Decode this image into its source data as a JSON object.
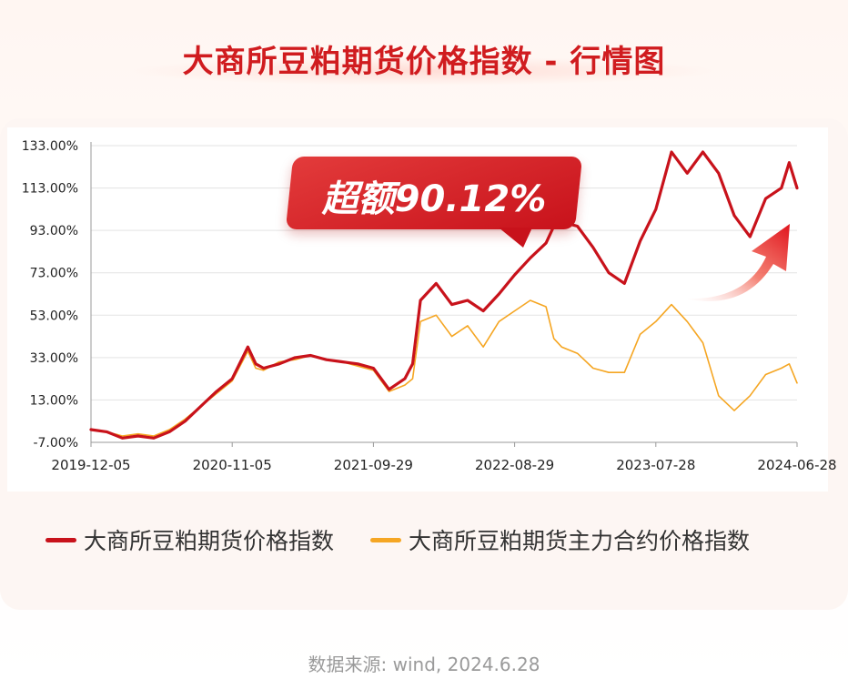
{
  "title": "大商所豆粕期货价格指数 - 行情图",
  "callout": "超额90.12%",
  "source": "数据来源: wind, 2024.6.28",
  "colors": {
    "series1": "#c8121b",
    "series2": "#f5a623",
    "accent": "#d01c1f"
  },
  "chart_data": {
    "type": "line",
    "ylim": [
      -7,
      133
    ],
    "yticks": [
      "133.00%",
      "113.00%",
      "93.00%",
      "73.00%",
      "53.00%",
      "33.00%",
      "13.00%",
      "-7.00%"
    ],
    "ytick_values": [
      133,
      113,
      93,
      73,
      53,
      33,
      13,
      -7
    ],
    "xticks": [
      "2019-12-05",
      "2020-11-05",
      "2021-09-29",
      "2022-08-29",
      "2023-07-28",
      "2024-06-28"
    ],
    "grid": true,
    "legend": "bottom",
    "x_end": 4.5,
    "series": [
      {
        "name": "大商所豆粕期货价格指数",
        "x": [
          0,
          0.1,
          0.2,
          0.3,
          0.4,
          0.5,
          0.6,
          0.7,
          0.8,
          0.9,
          1.0,
          1.05,
          1.1,
          1.2,
          1.3,
          1.4,
          1.5,
          1.6,
          1.7,
          1.8,
          1.9,
          2.0,
          2.05,
          2.1,
          2.2,
          2.3,
          2.4,
          2.5,
          2.6,
          2.7,
          2.8,
          2.9,
          2.95,
          3.0,
          3.1,
          3.2,
          3.3,
          3.4,
          3.5,
          3.6,
          3.7,
          3.8,
          3.9,
          4.0,
          4.1,
          4.2,
          4.3,
          4.4,
          4.45,
          4.5
        ],
        "values": [
          -1,
          -2,
          -5,
          -4,
          -5,
          -2,
          3,
          10,
          17,
          23,
          38,
          30,
          28,
          30,
          33,
          34,
          32,
          31,
          30,
          28,
          18,
          23,
          30,
          60,
          68,
          58,
          60,
          55,
          63,
          72,
          80,
          87,
          95,
          97,
          95,
          85,
          73,
          68,
          88,
          103,
          130,
          120,
          130,
          120,
          100,
          90,
          108,
          113,
          125,
          113
        ]
      },
      {
        "name": "大商所豆粕期货主力合约价格指数",
        "x": [
          0,
          0.1,
          0.2,
          0.3,
          0.4,
          0.5,
          0.6,
          0.7,
          0.8,
          0.9,
          1.0,
          1.05,
          1.1,
          1.2,
          1.3,
          1.4,
          1.5,
          1.6,
          1.7,
          1.8,
          1.9,
          2.0,
          2.05,
          2.1,
          2.2,
          2.3,
          2.4,
          2.5,
          2.6,
          2.7,
          2.8,
          2.9,
          2.95,
          3.0,
          3.1,
          3.2,
          3.3,
          3.4,
          3.5,
          3.6,
          3.7,
          3.8,
          3.9,
          4.0,
          4.1,
          4.2,
          4.3,
          4.4,
          4.45,
          4.5
        ],
        "values": [
          -1,
          -2,
          -4,
          -3,
          -4,
          -1,
          4,
          10,
          16,
          22,
          36,
          28,
          27,
          31,
          32,
          34,
          32,
          31,
          29,
          27,
          17,
          20,
          23,
          50,
          53,
          43,
          48,
          38,
          50,
          55,
          60,
          57,
          42,
          38,
          35,
          28,
          26,
          26,
          44,
          50,
          58,
          50,
          40,
          15,
          8,
          15,
          25,
          28,
          30,
          21
        ]
      }
    ]
  }
}
